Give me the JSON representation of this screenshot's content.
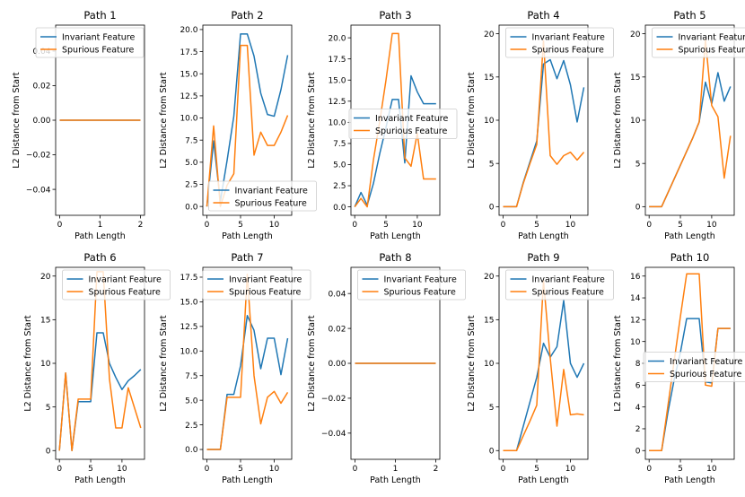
{
  "chart_data": [
    {
      "type": "line",
      "title": "Path 1",
      "xlabel": "Path Length",
      "ylabel": "L2 Distance from Start",
      "xlim": [
        -0.1,
        2.1
      ],
      "ylim": [
        -0.055,
        0.055
      ],
      "xticks": [
        0,
        1,
        2
      ],
      "yticks": [
        -0.04,
        -0.02,
        0.0,
        0.02,
        0.04
      ],
      "yticklabels": [
        "−0.04",
        "−0.02",
        "0.00",
        "0.02",
        "0.04"
      ],
      "legend": "upper-left",
      "series": [
        {
          "name": "Invariant Feature",
          "color": "#1f77b4",
          "x": [
            0,
            1,
            2
          ],
          "y": [
            0,
            0,
            0
          ]
        },
        {
          "name": "Spurious Feature",
          "color": "#ff7f0e",
          "x": [
            0,
            1,
            2
          ],
          "y": [
            0,
            0,
            0
          ]
        }
      ]
    },
    {
      "type": "line",
      "title": "Path 2",
      "xlabel": "Path Length",
      "ylabel": "L2 Distance from Start",
      "xlim": [
        -0.6,
        12.6
      ],
      "ylim": [
        -1.0,
        20.5
      ],
      "xticks": [
        0,
        5,
        10
      ],
      "yticks": [
        0,
        2.5,
        5,
        7.5,
        10,
        12.5,
        15,
        17.5,
        20
      ],
      "yticklabels": [
        "0.0",
        "2.5",
        "5.0",
        "7.5",
        "10.0",
        "12.5",
        "15.0",
        "17.5",
        "20.0"
      ],
      "legend": "lower-center",
      "series": [
        {
          "name": "Invariant Feature",
          "color": "#1f77b4",
          "x": [
            0,
            1,
            2,
            3,
            4,
            5,
            6,
            7,
            8,
            9,
            10,
            11,
            12
          ],
          "y": [
            0,
            7.4,
            0.6,
            5.2,
            10.2,
            19.5,
            19.5,
            17.0,
            12.8,
            10.4,
            10.2,
            13.2,
            17.1
          ]
        },
        {
          "name": "Spurious Feature",
          "color": "#ff7f0e",
          "x": [
            0,
            1,
            2,
            3,
            4,
            5,
            6,
            7,
            8,
            9,
            10,
            11,
            12
          ],
          "y": [
            0,
            9.1,
            0,
            2.4,
            3.7,
            18.2,
            18.2,
            5.8,
            8.4,
            6.9,
            6.9,
            8.4,
            10.3
          ]
        }
      ]
    },
    {
      "type": "line",
      "title": "Path 3",
      "xlabel": "Path Length",
      "ylabel": "L2 Distance from Start",
      "xlim": [
        -0.6,
        13.6
      ],
      "ylim": [
        -1.0,
        21.5
      ],
      "xticks": [
        0,
        5,
        10
      ],
      "yticks": [
        0,
        2.5,
        5,
        7.5,
        10,
        12.5,
        15,
        17.5,
        20
      ],
      "yticklabels": [
        "0.0",
        "2.5",
        "5.0",
        "7.5",
        "10.0",
        "12.5",
        "15.0",
        "17.5",
        "20.0"
      ],
      "legend": "center-right",
      "series": [
        {
          "name": "Invariant Feature",
          "color": "#1f77b4",
          "x": [
            0,
            1,
            2,
            3,
            4,
            5,
            6,
            7,
            8,
            9,
            10,
            11,
            12,
            13
          ],
          "y": [
            0,
            1.7,
            0.2,
            2.8,
            6.3,
            9.4,
            12.7,
            12.7,
            5.2,
            15.5,
            13.6,
            12.2,
            12.2,
            12.2
          ]
        },
        {
          "name": "Spurious Feature",
          "color": "#ff7f0e",
          "x": [
            0,
            1,
            2,
            3,
            4,
            5,
            6,
            7,
            8,
            9,
            10,
            11,
            12,
            13
          ],
          "y": [
            0,
            1.0,
            0,
            5.6,
            10.1,
            15.0,
            20.5,
            20.5,
            5.8,
            4.8,
            8.7,
            3.3,
            3.3,
            3.3
          ]
        }
      ]
    },
    {
      "type": "line",
      "title": "Path 4",
      "xlabel": "Path Length",
      "ylabel": "L2 Distance from Start",
      "xlim": [
        -0.6,
        12.6
      ],
      "ylim": [
        -1.0,
        21.0
      ],
      "xticks": [
        0,
        5,
        10
      ],
      "yticks": [
        0,
        5,
        10,
        15,
        20
      ],
      "yticklabels": [
        "0",
        "5",
        "10",
        "15",
        "20"
      ],
      "legend": "upper-center",
      "series": [
        {
          "name": "Invariant Feature",
          "color": "#1f77b4",
          "x": [
            0,
            1,
            2,
            3,
            4,
            5,
            6,
            7,
            8,
            9,
            10,
            11,
            12
          ],
          "y": [
            0,
            0,
            0,
            2.8,
            5.2,
            7.6,
            16.5,
            17.0,
            14.8,
            16.9,
            14.1,
            9.8,
            13.8
          ]
        },
        {
          "name": "Spurious Feature",
          "color": "#ff7f0e",
          "x": [
            0,
            1,
            2,
            3,
            4,
            5,
            6,
            7,
            8,
            9,
            10,
            11,
            12
          ],
          "y": [
            0,
            0,
            0,
            2.7,
            5.0,
            7.2,
            19.2,
            5.9,
            4.9,
            5.9,
            6.3,
            5.4,
            6.3
          ]
        }
      ]
    },
    {
      "type": "line",
      "title": "Path 5",
      "xlabel": "Path Length",
      "ylabel": "L2 Distance from Start",
      "xlim": [
        -0.6,
        13.6
      ],
      "ylim": [
        -1.0,
        21.0
      ],
      "xticks": [
        0,
        5,
        10
      ],
      "yticks": [
        0,
        5,
        10,
        15,
        20
      ],
      "yticklabels": [
        "0",
        "5",
        "10",
        "15",
        "20"
      ],
      "legend": "upper-center",
      "series": [
        {
          "name": "Invariant Feature",
          "color": "#1f77b4",
          "x": [
            0,
            1,
            2,
            3,
            4,
            5,
            6,
            7,
            8,
            9,
            10,
            11,
            12,
            13
          ],
          "y": [
            0,
            0,
            0,
            1.6,
            3.2,
            4.8,
            6.4,
            8.0,
            9.8,
            14.4,
            11.9,
            15.5,
            12.2,
            13.9
          ]
        },
        {
          "name": "Spurious Feature",
          "color": "#ff7f0e",
          "x": [
            0,
            1,
            2,
            3,
            4,
            5,
            6,
            7,
            8,
            9,
            10,
            11,
            12,
            13
          ],
          "y": [
            0,
            0,
            0,
            1.6,
            3.2,
            4.8,
            6.4,
            8.0,
            9.8,
            19.3,
            11.7,
            10.4,
            3.3,
            8.2
          ]
        }
      ]
    },
    {
      "type": "line",
      "title": "Path 6",
      "xlabel": "Path Length",
      "ylabel": "L2 Distance from Start",
      "xlim": [
        -0.6,
        13.6
      ],
      "ylim": [
        -1.0,
        21.0
      ],
      "xticks": [
        0,
        5,
        10
      ],
      "yticks": [
        0,
        5,
        10,
        15,
        20
      ],
      "yticklabels": [
        "0",
        "5",
        "10",
        "15",
        "20"
      ],
      "legend": "upper-center",
      "series": [
        {
          "name": "Invariant Feature",
          "color": "#1f77b4",
          "x": [
            0,
            1,
            2,
            3,
            4,
            5,
            6,
            7,
            8,
            9,
            10,
            11,
            12,
            13
          ],
          "y": [
            0,
            8.9,
            0,
            5.6,
            5.6,
            5.6,
            13.5,
            13.5,
            10.0,
            8.4,
            7.0,
            8.0,
            8.6,
            9.3
          ]
        },
        {
          "name": "Spurious Feature",
          "color": "#ff7f0e",
          "x": [
            0,
            1,
            2,
            3,
            4,
            5,
            6,
            7,
            8,
            9,
            10,
            11,
            12,
            13
          ],
          "y": [
            0,
            8.9,
            0,
            5.9,
            5.9,
            5.9,
            20.5,
            20.5,
            8.2,
            2.6,
            2.6,
            7.2,
            4.9,
            2.6
          ]
        }
      ]
    },
    {
      "type": "line",
      "title": "Path 7",
      "xlabel": "Path Length",
      "ylabel": "L2 Distance from Start",
      "xlim": [
        -0.6,
        12.6
      ],
      "ylim": [
        -1.0,
        18.5
      ],
      "xticks": [
        0,
        5,
        10
      ],
      "yticks": [
        0,
        2.5,
        5,
        7.5,
        10,
        12.5,
        15,
        17.5
      ],
      "yticklabels": [
        "0.0",
        "2.5",
        "5.0",
        "7.5",
        "10.0",
        "12.5",
        "15.0",
        "17.5"
      ],
      "legend": "upper-right",
      "series": [
        {
          "name": "Invariant Feature",
          "color": "#1f77b4",
          "x": [
            0,
            1,
            2,
            3,
            4,
            5,
            6,
            7,
            8,
            9,
            10,
            11,
            12
          ],
          "y": [
            0,
            0,
            0,
            5.6,
            5.6,
            8.5,
            13.6,
            12.1,
            8.2,
            11.3,
            11.3,
            7.6,
            11.3
          ]
        },
        {
          "name": "Spurious Feature",
          "color": "#ff7f0e",
          "x": [
            0,
            1,
            2,
            3,
            4,
            5,
            6,
            7,
            8,
            9,
            10,
            11,
            12
          ],
          "y": [
            0,
            0,
            0,
            5.3,
            5.3,
            5.3,
            17.8,
            7.5,
            2.6,
            5.3,
            5.9,
            4.7,
            5.8
          ]
        }
      ]
    },
    {
      "type": "line",
      "title": "Path 8",
      "xlabel": "Path Length",
      "ylabel": "L2 Distance from Start",
      "xlim": [
        -0.1,
        2.1
      ],
      "ylim": [
        -0.055,
        0.055
      ],
      "xticks": [
        0,
        1,
        2
      ],
      "yticks": [
        -0.04,
        -0.02,
        0.0,
        0.02,
        0.04
      ],
      "yticklabels": [
        "−0.04",
        "−0.02",
        "0.00",
        "0.02",
        "0.04"
      ],
      "legend": "upper-center",
      "series": [
        {
          "name": "Invariant Feature",
          "color": "#1f77b4",
          "x": [
            0,
            1,
            2
          ],
          "y": [
            0,
            0,
            0
          ]
        },
        {
          "name": "Spurious Feature",
          "color": "#ff7f0e",
          "x": [
            0,
            1,
            2
          ],
          "y": [
            0,
            0,
            0
          ]
        }
      ]
    },
    {
      "type": "line",
      "title": "Path 9",
      "xlabel": "Path Length",
      "ylabel": "L2 Distance from Start",
      "xlim": [
        -0.6,
        12.6
      ],
      "ylim": [
        -1.0,
        21.0
      ],
      "xticks": [
        0,
        5,
        10
      ],
      "yticks": [
        0,
        5,
        10,
        15,
        20
      ],
      "yticklabels": [
        "0",
        "5",
        "10",
        "15",
        "20"
      ],
      "legend": "upper-center",
      "series": [
        {
          "name": "Invariant Feature",
          "color": "#1f77b4",
          "x": [
            0,
            1,
            2,
            3,
            4,
            5,
            6,
            7,
            8,
            9,
            10,
            11,
            12
          ],
          "y": [
            0,
            0,
            0,
            2.8,
            5.6,
            8.4,
            12.3,
            10.7,
            11.9,
            17.2,
            10.0,
            8.4,
            10.0
          ]
        },
        {
          "name": "Spurious Feature",
          "color": "#ff7f0e",
          "x": [
            0,
            1,
            2,
            3,
            4,
            5,
            6,
            7,
            8,
            9,
            10,
            11,
            12
          ],
          "y": [
            0,
            0,
            0,
            1.7,
            3.4,
            5.2,
            19.5,
            10.6,
            2.8,
            9.3,
            4.1,
            4.2,
            4.1
          ]
        }
      ]
    },
    {
      "type": "line",
      "title": "Path 10",
      "xlabel": "Path Length",
      "ylabel": "L2 Distance from Start",
      "xlim": [
        -0.6,
        13.6
      ],
      "ylim": [
        -0.8,
        16.8
      ],
      "xticks": [
        0,
        5,
        10
      ],
      "yticks": [
        0,
        2,
        4,
        6,
        8,
        10,
        12,
        14,
        16
      ],
      "yticklabels": [
        "0",
        "2",
        "4",
        "6",
        "8",
        "10",
        "12",
        "14",
        "16"
      ],
      "legend": "center-right",
      "series": [
        {
          "name": "Invariant Feature",
          "color": "#1f77b4",
          "x": [
            0,
            1,
            2,
            3,
            4,
            5,
            6,
            7,
            8,
            9,
            10,
            11,
            12,
            13
          ],
          "y": [
            0,
            0,
            0,
            3.5,
            6.5,
            9.0,
            12.1,
            12.1,
            12.1,
            6.3,
            6.2,
            11.2,
            11.2,
            11.2
          ]
        },
        {
          "name": "Spurious Feature",
          "color": "#ff7f0e",
          "x": [
            0,
            1,
            2,
            3,
            4,
            5,
            6,
            7,
            8,
            9,
            10,
            11,
            12,
            13
          ],
          "y": [
            0,
            0,
            0,
            4.1,
            8.2,
            12.3,
            16.2,
            16.2,
            16.2,
            6.0,
            5.9,
            11.2,
            11.2,
            11.2
          ]
        }
      ]
    }
  ]
}
